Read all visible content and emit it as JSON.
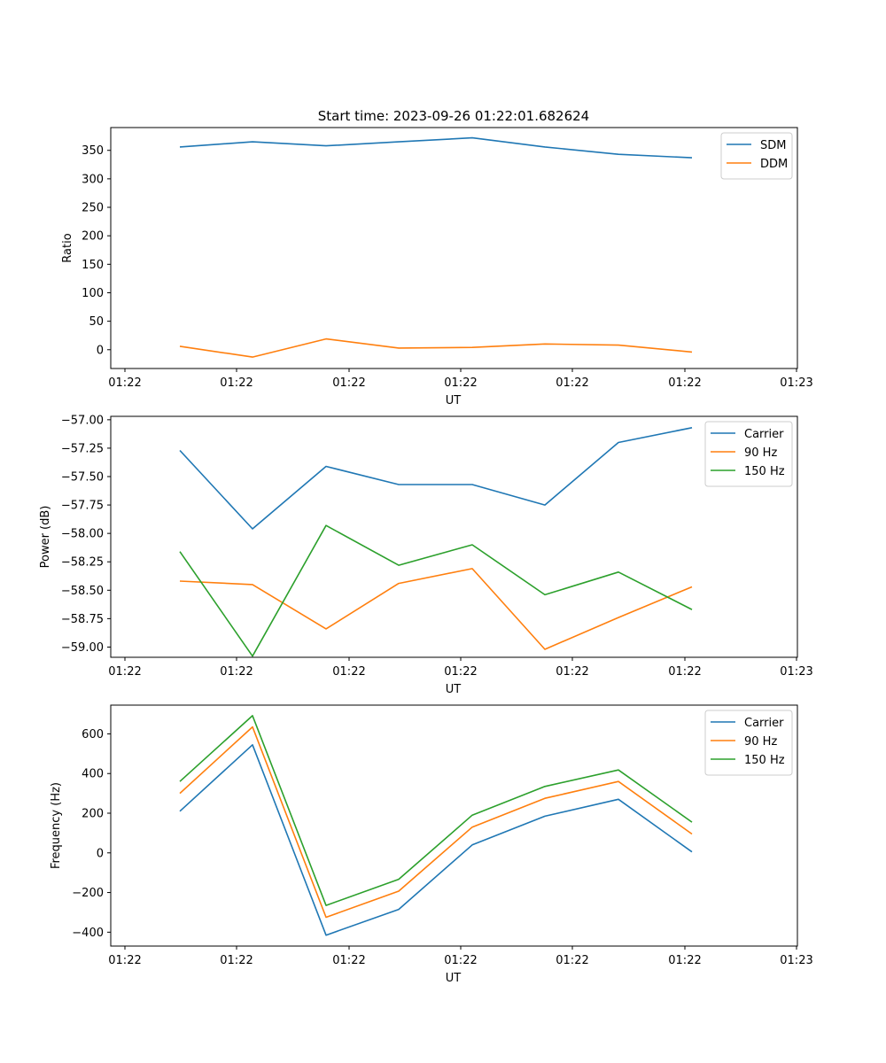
{
  "figure_title": "Start time: 2023-09-26 01:22:01.682624",
  "colors": {
    "blue": "#1f77b4",
    "orange": "#ff7f0e",
    "green": "#2ca02c"
  },
  "chart_data": [
    {
      "type": "line",
      "xlabel": "UT",
      "ylabel": "Ratio",
      "x_tick_labels": [
        "01:22",
        "01:22",
        "01:22",
        "01:22",
        "01:22",
        "01:22",
        "01:23"
      ],
      "ylim": [
        -33,
        390
      ],
      "yticks": [
        0,
        50,
        100,
        150,
        200,
        250,
        300,
        350
      ],
      "y_tick_labels": [
        "0",
        "50",
        "100",
        "150",
        "200",
        "250",
        "300",
        "350"
      ],
      "legend_position": "top-right",
      "series": [
        {
          "name": "SDM",
          "color": "#1f77b4",
          "values": [
            356,
            365,
            358,
            365,
            372,
            356,
            343,
            337
          ]
        },
        {
          "name": "DDM",
          "color": "#ff7f0e",
          "values": [
            6,
            -13,
            19,
            3,
            4,
            10,
            8,
            -4
          ]
        }
      ]
    },
    {
      "type": "line",
      "xlabel": "UT",
      "ylabel": "Power (dB)",
      "x_tick_labels": [
        "01:22",
        "01:22",
        "01:22",
        "01:22",
        "01:22",
        "01:22",
        "01:23"
      ],
      "ylim": [
        -59.09,
        -56.97
      ],
      "yticks": [
        -59.0,
        -58.75,
        -58.5,
        -58.25,
        -58.0,
        -57.75,
        -57.5,
        -57.25,
        -57.0
      ],
      "y_tick_labels": [
        "−59.00",
        "−58.75",
        "−58.50",
        "−58.25",
        "−58.00",
        "−57.75",
        "−57.50",
        "−57.25",
        "−57.00"
      ],
      "legend_position": "top-right",
      "series": [
        {
          "name": "Carrier",
          "color": "#1f77b4",
          "values": [
            -57.27,
            -57.96,
            -57.41,
            -57.57,
            -57.57,
            -57.75,
            -57.2,
            -57.07
          ]
        },
        {
          "name": "90 Hz",
          "color": "#ff7f0e",
          "values": [
            -58.42,
            -58.45,
            -58.84,
            -58.44,
            -58.31,
            -59.02,
            -58.74,
            -58.47
          ]
        },
        {
          "name": "150 Hz",
          "color": "#2ca02c",
          "values": [
            -58.16,
            -59.08,
            -57.93,
            -58.28,
            -58.1,
            -58.54,
            -58.34,
            -58.67
          ]
        }
      ]
    },
    {
      "type": "line",
      "xlabel": "UT",
      "ylabel": "Frequency (Hz)",
      "x_tick_labels": [
        "01:22",
        "01:22",
        "01:22",
        "01:22",
        "01:22",
        "01:22",
        "01:23"
      ],
      "ylim": [
        -470,
        745
      ],
      "yticks": [
        -400,
        -200,
        0,
        200,
        400,
        600
      ],
      "y_tick_labels": [
        "−400",
        "−200",
        "0",
        "200",
        "400",
        "600"
      ],
      "legend_position": "top-right",
      "series": [
        {
          "name": "Carrier",
          "color": "#1f77b4",
          "values": [
            210,
            545,
            -415,
            -285,
            40,
            185,
            270,
            5
          ]
        },
        {
          "name": "90 Hz",
          "color": "#ff7f0e",
          "values": [
            300,
            635,
            -325,
            -193,
            130,
            275,
            360,
            95
          ]
        },
        {
          "name": "150 Hz",
          "color": "#2ca02c",
          "values": [
            360,
            692,
            -265,
            -133,
            190,
            335,
            418,
            155
          ]
        }
      ]
    }
  ]
}
